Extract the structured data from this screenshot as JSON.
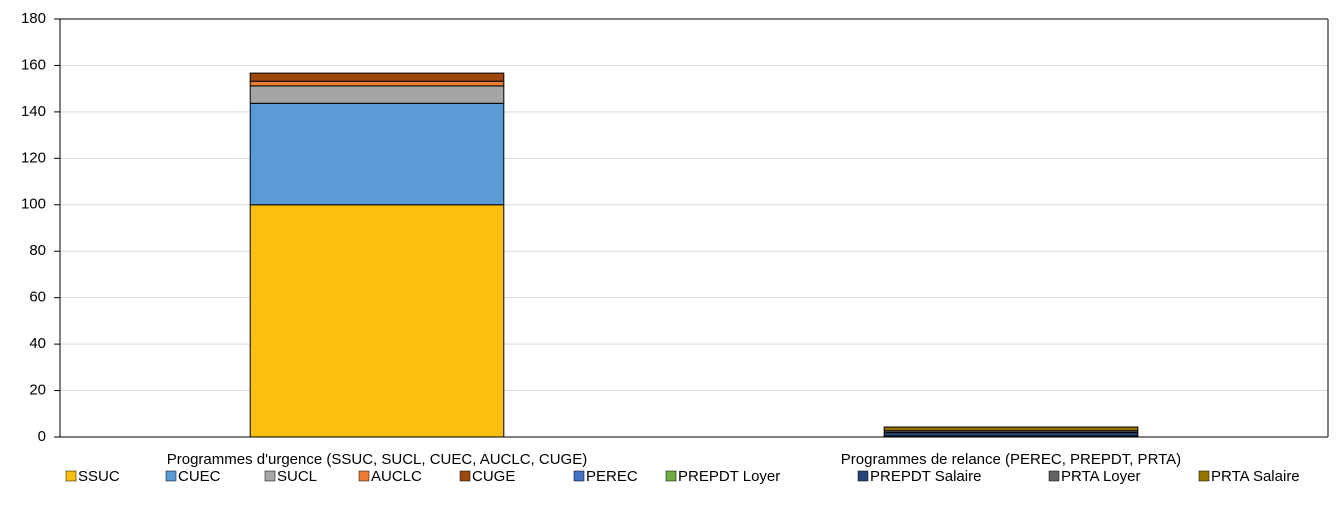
{
  "chart_data": {
    "type": "stacked_bar",
    "categories": [
      "Programmes d'urgence (SSUC, SUCL, CUEC, AUCLC,  CUGE)",
      "Programmes de relance (PEREC, PREPDT, PRTA)"
    ],
    "series": [
      {
        "name": "SSUC",
        "color": "#fbbf0f",
        "values": [
          100,
          null
        ]
      },
      {
        "name": "CUEC",
        "color": "#5b9bd5",
        "values": [
          43.7,
          null
        ]
      },
      {
        "name": "SUCL",
        "color": "#a5a5a5",
        "values": [
          7.5,
          null
        ]
      },
      {
        "name": "AUCLC",
        "color": "#ed7d31",
        "values": [
          2,
          null
        ]
      },
      {
        "name": "CUGE",
        "color": "#9e480e",
        "values": [
          3.5,
          null
        ]
      },
      {
        "name": "PEREC",
        "color": "#4472c4",
        "values": [
          null,
          0.3
        ]
      },
      {
        "name": "PREPDT Loyer",
        "color": "#70ad47",
        "values": [
          null,
          0.1
        ]
      },
      {
        "name": "PREPDT Salaire",
        "color": "#264478",
        "values": [
          null,
          1.5
        ]
      },
      {
        "name": "PRTA Loyer",
        "color": "#636363",
        "values": [
          null,
          0.8
        ]
      },
      {
        "name": "PRTA Salaire",
        "color": "#997300",
        "values": [
          null,
          1.6
        ]
      }
    ],
    "ylim": [
      0,
      180
    ],
    "yticks": [
      0,
      20,
      40,
      60,
      80,
      100,
      120,
      140,
      160,
      180
    ],
    "grid": true,
    "legend": "bottom"
  }
}
